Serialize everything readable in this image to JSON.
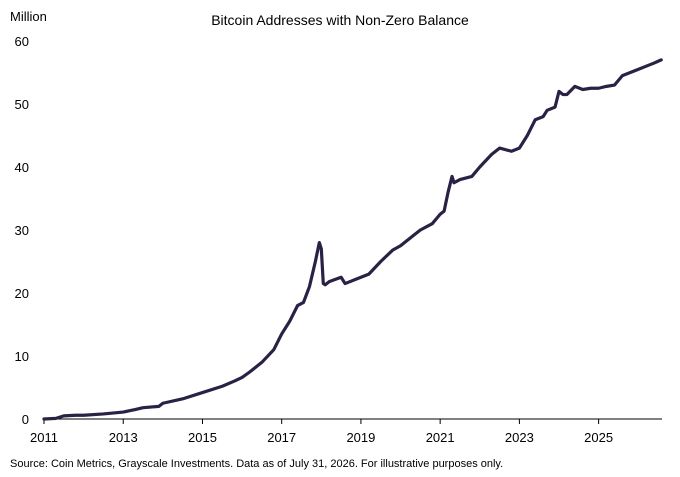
{
  "chart_data": {
    "type": "line",
    "title": "Bitcoin Addresses with Non-Zero Balance",
    "ylabel": "Million",
    "xlabel": "",
    "ylim": [
      0,
      60
    ],
    "xlim": [
      2011.0,
      2026.6
    ],
    "y_ticks": [
      0,
      10,
      20,
      30,
      40,
      50,
      60
    ],
    "x_ticks": [
      2011,
      2013,
      2015,
      2017,
      2019,
      2021,
      2023,
      2025
    ],
    "grid": false,
    "legend": "none",
    "line_color": "#2a2145",
    "source": "Source: Coin Metrics, Grayscale Investments. Data as of July 31, 2026. For illustrative purposes only.",
    "series": [
      {
        "x": [
          2011.0,
          2011.3,
          2011.5,
          2011.8,
          2012.0,
          2012.5,
          2013.0,
          2013.3,
          2013.5,
          2013.9,
          2014.0,
          2014.5,
          2015.0,
          2015.5,
          2015.8,
          2016.0,
          2016.2,
          2016.5,
          2016.8,
          2017.0,
          2017.2,
          2017.4,
          2017.55,
          2017.7,
          2017.85,
          2017.95,
          2018.0,
          2018.05,
          2018.1,
          2018.2,
          2018.5,
          2018.6,
          2019.0,
          2019.2,
          2019.5,
          2019.8,
          2020.0,
          2020.3,
          2020.5,
          2020.8,
          2021.0,
          2021.1,
          2021.2,
          2021.3,
          2021.35,
          2021.5,
          2021.8,
          2022.0,
          2022.3,
          2022.5,
          2022.8,
          2023.0,
          2023.2,
          2023.4,
          2023.6,
          2023.7,
          2023.9,
          2024.0,
          2024.1,
          2024.2,
          2024.4,
          2024.6,
          2024.8,
          2025.0,
          2025.2,
          2025.4,
          2025.6,
          2025.8,
          2026.0,
          2026.2,
          2026.4,
          2026.58
        ],
        "values": [
          0.0,
          0.1,
          0.5,
          0.6,
          0.6,
          0.8,
          1.1,
          1.5,
          1.8,
          2.0,
          2.5,
          3.2,
          4.2,
          5.2,
          6.0,
          6.6,
          7.5,
          9.0,
          11.0,
          13.5,
          15.5,
          18.0,
          18.5,
          21.0,
          25.0,
          28.0,
          27.0,
          21.5,
          21.3,
          21.8,
          22.5,
          21.5,
          22.5,
          23.0,
          25.0,
          26.8,
          27.5,
          29.0,
          30.0,
          31.0,
          32.5,
          33.0,
          36.0,
          38.5,
          37.5,
          38.0,
          38.5,
          40.0,
          42.0,
          43.0,
          42.5,
          43.0,
          45.0,
          47.5,
          48.0,
          49.0,
          49.5,
          52.0,
          51.5,
          51.5,
          52.8,
          52.3,
          52.5,
          52.5,
          52.8,
          53.0,
          54.5,
          55.0,
          55.5,
          56.0,
          56.5,
          57.0
        ]
      }
    ]
  }
}
